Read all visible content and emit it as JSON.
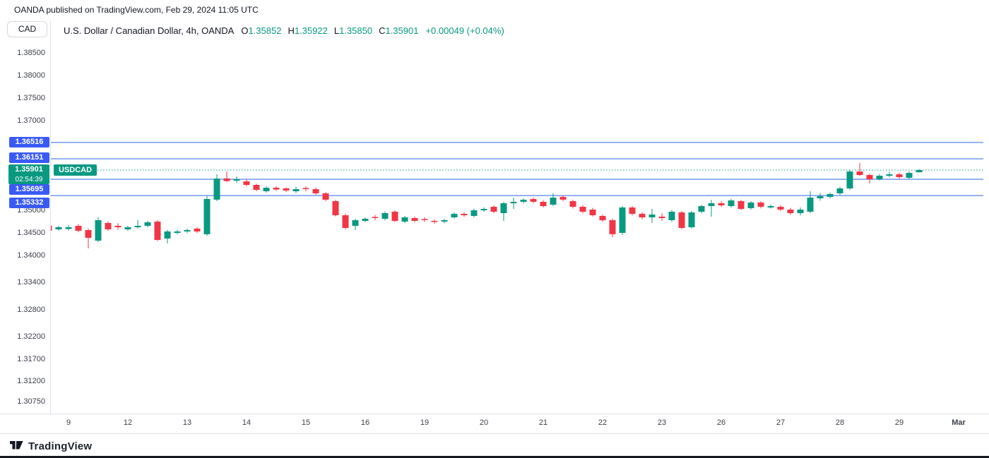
{
  "top_note": "OANDA published on TradingView.com, Feb 29, 2024 11:05 UTC",
  "header": {
    "symbol_button": "CAD",
    "legend_title": "U.S. Dollar / Canadian Dollar, 4h, OANDA",
    "ohlc": [
      {
        "label": "O",
        "value": "1.35852"
      },
      {
        "label": "H",
        "value": "1.35922"
      },
      {
        "label": "L",
        "value": "1.35850"
      },
      {
        "label": "C",
        "value": "1.35901"
      }
    ],
    "change_text": "+0.00049 (+0.04%)"
  },
  "footer": {
    "brand": "TradingView"
  },
  "colors": {
    "up": "#089981",
    "down": "#F23645",
    "level_line": "#7C9FF2",
    "level_badge": "#3A5AF5",
    "text_dark": "#131722",
    "text_axis": "#3C404B",
    "border": "#E0E3EB",
    "bottom_bar": "#16191F"
  },
  "chart_data": {
    "type": "candlestick",
    "title": "U.S. Dollar / Canadian Dollar, 4h, OANDA",
    "symbol_label": "USDCAD",
    "timeframe": "4h",
    "current": {
      "price": 1.35901,
      "label": "1.35901",
      "countdown": "02:54:39"
    },
    "levels": [
      {
        "value": 1.36516,
        "label": "1.36516"
      },
      {
        "value": 1.36151,
        "label": "1.36151"
      },
      {
        "value": 1.35695,
        "label": "1.35695"
      },
      {
        "value": 1.35332,
        "label": "1.35332"
      }
    ],
    "price_ticks": [
      "1.38500",
      "1.38000",
      "1.37500",
      "1.37000",
      "1.35000",
      "1.34500",
      "1.34000",
      "1.33400",
      "1.32800",
      "1.32200",
      "1.31700",
      "1.31200",
      "1.30750"
    ],
    "ylim": [
      1.304,
      1.388
    ],
    "x_labels": [
      {
        "text": "9",
        "bar": 2
      },
      {
        "text": "12",
        "bar": 8
      },
      {
        "text": "13",
        "bar": 14
      },
      {
        "text": "14",
        "bar": 20
      },
      {
        "text": "15",
        "bar": 26
      },
      {
        "text": "16",
        "bar": 32
      },
      {
        "text": "19",
        "bar": 38
      },
      {
        "text": "20",
        "bar": 44
      },
      {
        "text": "21",
        "bar": 50
      },
      {
        "text": "22",
        "bar": 56
      },
      {
        "text": "23",
        "bar": 62
      },
      {
        "text": "26",
        "bar": 68
      },
      {
        "text": "27",
        "bar": 74
      },
      {
        "text": "28",
        "bar": 80
      },
      {
        "text": "29",
        "bar": 86
      },
      {
        "text": "Mar",
        "bar": 92,
        "bold": true
      }
    ],
    "candles": [
      [
        1.3466,
        1.347,
        1.3452,
        1.34551
      ],
      [
        1.34582,
        1.3466,
        1.3455,
        1.34629
      ],
      [
        1.3459,
        1.3468,
        1.3456,
        1.34629
      ],
      [
        1.34661,
        1.347,
        1.3452,
        1.34551
      ],
      [
        1.34567,
        1.346,
        1.34158,
        1.34394
      ],
      [
        1.34331,
        1.34849,
        1.343,
        1.34786
      ],
      [
        1.34724,
        1.3476,
        1.3455,
        1.34582
      ],
      [
        1.34661,
        1.3472,
        1.3457,
        1.34629
      ],
      [
        1.34582,
        1.3466,
        1.3455,
        1.34629
      ],
      [
        1.34629,
        1.34786,
        1.346,
        1.34661
      ],
      [
        1.34661,
        1.3477,
        1.3463,
        1.34739
      ],
      [
        1.34755,
        1.3479,
        1.3432,
        1.34347
      ],
      [
        1.34378,
        1.3457,
        1.34268,
        1.34535
      ],
      [
        1.34504,
        1.3457,
        1.3447,
        1.34535
      ],
      [
        1.34535,
        1.346,
        1.345,
        1.34567
      ],
      [
        1.34598,
        1.3463,
        1.345,
        1.34535
      ],
      [
        1.34473,
        1.3532,
        1.34441,
        1.35257
      ],
      [
        1.35242,
        1.35807,
        1.3521,
        1.35712
      ],
      [
        1.35715,
        1.3587,
        1.3563,
        1.35655
      ],
      [
        1.35666,
        1.3576,
        1.3562,
        1.35697
      ],
      [
        1.3565,
        1.3569,
        1.3554,
        1.35571
      ],
      [
        1.35571,
        1.356,
        1.3543,
        1.35461
      ],
      [
        1.3543,
        1.3554,
        1.354,
        1.35509
      ],
      [
        1.35509,
        1.3554,
        1.3544,
        1.35469
      ],
      [
        1.35493,
        1.3552,
        1.3541,
        1.35446
      ],
      [
        1.3543,
        1.3553,
        1.3539,
        1.35477
      ],
      [
        1.35501,
        1.3554,
        1.3543,
        1.35477
      ],
      [
        1.35477,
        1.3551,
        1.3535,
        1.35383
      ],
      [
        1.35383,
        1.3541,
        1.3521,
        1.35242
      ],
      [
        1.3521,
        1.3524,
        1.3487,
        1.34896
      ],
      [
        1.34896,
        1.3493,
        1.3458,
        1.34614
      ],
      [
        1.34661,
        1.3482,
        1.34567,
        1.34786
      ],
      [
        1.34771,
        1.3485,
        1.3474,
        1.34818
      ],
      [
        1.34857,
        1.349,
        1.3479,
        1.34834
      ],
      [
        1.34818,
        1.3498,
        1.3478,
        1.34943
      ],
      [
        1.34975,
        1.3501,
        1.3474,
        1.34771
      ],
      [
        1.34755,
        1.3488,
        1.3472,
        1.34849
      ],
      [
        1.34834,
        1.3487,
        1.3474,
        1.34771
      ],
      [
        1.3481,
        1.3485,
        1.3475,
        1.34786
      ],
      [
        1.34771,
        1.348,
        1.3471,
        1.34747
      ],
      [
        1.34755,
        1.3482,
        1.3472,
        1.34786
      ],
      [
        1.34849,
        1.3496,
        1.3482,
        1.34928
      ],
      [
        1.34928,
        1.3496,
        1.3486,
        1.34896
      ],
      [
        1.34881,
        1.3504,
        1.3485,
        1.35006
      ],
      [
        1.35006,
        1.3507,
        1.3497,
        1.35038
      ],
      [
        1.35085,
        1.3511,
        1.3494,
        1.34975
      ],
      [
        1.34943,
        1.3519,
        1.34771,
        1.35163
      ],
      [
        1.35163,
        1.35289,
        1.35038,
        1.35195
      ],
      [
        1.35195,
        1.3527,
        1.3516,
        1.35242
      ],
      [
        1.35257,
        1.3529,
        1.3516,
        1.35195
      ],
      [
        1.35195,
        1.3523,
        1.3507,
        1.351
      ],
      [
        1.35132,
        1.35383,
        1.351,
        1.35289
      ],
      [
        1.35304,
        1.3534,
        1.3521,
        1.35242
      ],
      [
        1.3521,
        1.3524,
        1.3505,
        1.35085
      ],
      [
        1.35085,
        1.3512,
        1.3494,
        1.34975
      ],
      [
        1.35022,
        1.3506,
        1.3487,
        1.34896
      ],
      [
        1.34881,
        1.3491,
        1.3475,
        1.34786
      ],
      [
        1.34786,
        1.3482,
        1.3441,
        1.34473
      ],
      [
        1.34504,
        1.351,
        1.34457,
        1.35069
      ],
      [
        1.35069,
        1.351,
        1.3489,
        1.34928
      ],
      [
        1.34928,
        1.3496,
        1.3481,
        1.34849
      ],
      [
        1.34849,
        1.35038,
        1.34724,
        1.34912
      ],
      [
        1.34865,
        1.3494,
        1.3477,
        1.34834
      ],
      [
        1.34786,
        1.3501,
        1.3475,
        1.34975
      ],
      [
        1.34959,
        1.3499,
        1.3458,
        1.34614
      ],
      [
        1.34629,
        1.3499,
        1.346,
        1.34959
      ],
      [
        1.34975,
        1.3513,
        1.3494,
        1.351
      ],
      [
        1.351,
        1.35242,
        1.34865,
        1.35163
      ],
      [
        1.35163,
        1.3521,
        1.3508,
        1.35116
      ],
      [
        1.351,
        1.3526,
        1.3507,
        1.35226
      ],
      [
        1.3521,
        1.3524,
        1.3501,
        1.35038
      ],
      [
        1.35053,
        1.3521,
        1.3502,
        1.35179
      ],
      [
        1.35179,
        1.3521,
        1.3505,
        1.35085
      ],
      [
        1.35069,
        1.3514,
        1.3504,
        1.351
      ],
      [
        1.35085,
        1.3512,
        1.3499,
        1.35022
      ],
      [
        1.35022,
        1.3506,
        1.3491,
        1.34943
      ],
      [
        1.34943,
        1.3507,
        1.3489,
        1.35022
      ],
      [
        1.34975,
        1.3543,
        1.3494,
        1.35289
      ],
      [
        1.35273,
        1.3539,
        1.3522,
        1.3532
      ],
      [
        1.35304,
        1.354,
        1.3527,
        1.35367
      ],
      [
        1.35383,
        1.3553,
        1.3535,
        1.35493
      ],
      [
        1.35493,
        1.359,
        1.3546,
        1.3587
      ],
      [
        1.3587,
        1.3606,
        1.3577,
        1.35791
      ],
      [
        1.35791,
        1.3582,
        1.35603,
        1.35697
      ],
      [
        1.35697,
        1.3581,
        1.3567,
        1.35775
      ],
      [
        1.35775,
        1.3586,
        1.3574,
        1.35807
      ],
      [
        1.35807,
        1.3584,
        1.3571,
        1.35744
      ],
      [
        1.35728,
        1.3587,
        1.357,
        1.35838
      ],
      [
        1.35852,
        1.35922,
        1.3585,
        1.35901
      ]
    ]
  }
}
